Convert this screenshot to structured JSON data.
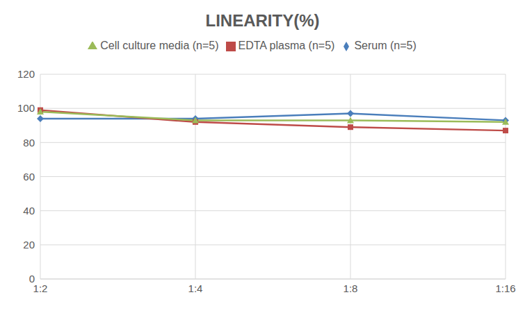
{
  "chart_data": {
    "type": "line",
    "title": "LINEARITY(%)",
    "categories": [
      "1:2",
      "1:4",
      "1:8",
      "1:16"
    ],
    "series": [
      {
        "name": "Serum (n=5)",
        "color": "#4a7ebb",
        "marker": "diamond",
        "values": [
          94,
          94,
          97,
          93
        ]
      },
      {
        "name": "EDTA plasma (n=5)",
        "color": "#be4b48",
        "marker": "square",
        "values": [
          99,
          92,
          89,
          87
        ]
      },
      {
        "name": "Cell culture media (n=5)",
        "color": "#9bbb59",
        "marker": "triangle",
        "values": [
          98,
          93,
          93,
          92
        ]
      }
    ],
    "ylim": [
      0,
      120
    ],
    "yticks": [
      0,
      20,
      40,
      60,
      80,
      100,
      120
    ],
    "grid": true,
    "legend": "top"
  }
}
